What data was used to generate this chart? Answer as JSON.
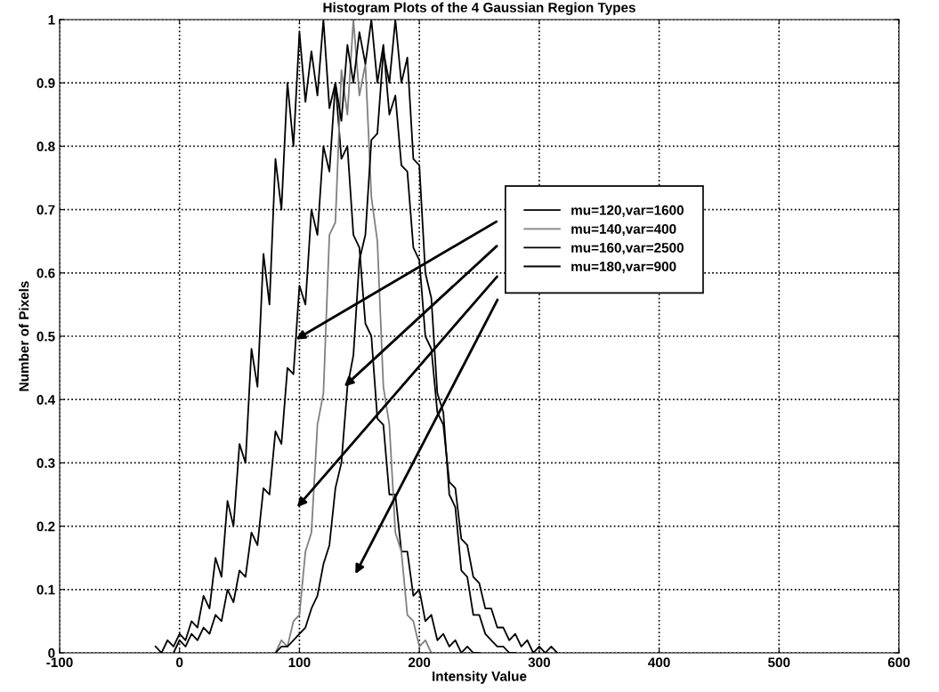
{
  "chart_data": {
    "type": "line",
    "title": "Histogram Plots of the 4 Gaussian Region Types",
    "xlabel": "Intensity Value",
    "ylabel": "Number of Pixels",
    "xlim": [
      -100,
      600
    ],
    "xticks": [
      -100,
      0,
      100,
      200,
      300,
      400,
      500,
      600
    ],
    "ylim": [
      0,
      1
    ],
    "yticks": [
      0,
      0.1,
      0.2,
      0.3,
      0.4,
      0.5,
      0.6,
      0.7,
      0.8,
      0.9,
      1
    ],
    "grid": true,
    "legend": "right",
    "line_style": "solid",
    "marker": "none",
    "series": [
      {
        "name": "mu=120,var=1600",
        "color": "#000000",
        "x": [
          -20,
          -15,
          -10,
          -5,
          0,
          5,
          10,
          15,
          20,
          25,
          30,
          35,
          40,
          45,
          50,
          55,
          60,
          65,
          70,
          75,
          80,
          85,
          90,
          95,
          100,
          105,
          110,
          115,
          120,
          125,
          130,
          135,
          140,
          145,
          150,
          155,
          160,
          165,
          170,
          175,
          180,
          185,
          190,
          195,
          200,
          205,
          210,
          215,
          220,
          225,
          230,
          235,
          240,
          245,
          250
        ],
        "values": [
          0.01,
          0.0,
          0.02,
          0.01,
          0.03,
          0.02,
          0.05,
          0.04,
          0.09,
          0.07,
          0.15,
          0.12,
          0.24,
          0.2,
          0.33,
          0.3,
          0.48,
          0.42,
          0.63,
          0.55,
          0.78,
          0.7,
          0.9,
          0.8,
          0.98,
          0.87,
          0.95,
          0.88,
          1.0,
          0.86,
          0.9,
          0.78,
          0.8,
          0.66,
          0.64,
          0.52,
          0.5,
          0.37,
          0.36,
          0.25,
          0.25,
          0.16,
          0.16,
          0.09,
          0.1,
          0.05,
          0.06,
          0.02,
          0.03,
          0.01,
          0.02,
          0.0,
          0.01,
          0.0,
          0.0
        ]
      },
      {
        "name": "mu=140,var=400",
        "color": "#808080",
        "x": [
          80,
          85,
          90,
          95,
          100,
          105,
          110,
          115,
          120,
          125,
          130,
          135,
          140,
          145,
          150,
          155,
          160,
          165,
          170,
          175,
          180,
          185,
          190,
          195,
          200,
          205,
          210
        ],
        "values": [
          0.0,
          0.02,
          0.01,
          0.05,
          0.06,
          0.16,
          0.19,
          0.36,
          0.41,
          0.66,
          0.68,
          0.92,
          0.85,
          1.0,
          0.88,
          0.93,
          0.72,
          0.65,
          0.42,
          0.36,
          0.19,
          0.16,
          0.06,
          0.05,
          0.01,
          0.02,
          0.0
        ]
      },
      {
        "name": "mu=160,var=2500",
        "color": "#000000",
        "x": [
          -5,
          0,
          5,
          10,
          15,
          20,
          25,
          30,
          35,
          40,
          45,
          50,
          55,
          60,
          65,
          70,
          75,
          80,
          85,
          90,
          95,
          100,
          105,
          110,
          115,
          120,
          125,
          130,
          135,
          140,
          145,
          150,
          155,
          160,
          165,
          170,
          175,
          180,
          185,
          190,
          195,
          200,
          205,
          210,
          215,
          220,
          225,
          230,
          235,
          240,
          245,
          250,
          255,
          260,
          265,
          270,
          275,
          280,
          285,
          290,
          295,
          300,
          305,
          310,
          315
        ],
        "values": [
          0.0,
          0.02,
          0.01,
          0.03,
          0.02,
          0.04,
          0.03,
          0.06,
          0.05,
          0.1,
          0.08,
          0.13,
          0.12,
          0.19,
          0.17,
          0.26,
          0.25,
          0.35,
          0.33,
          0.45,
          0.44,
          0.58,
          0.55,
          0.7,
          0.66,
          0.8,
          0.76,
          0.9,
          0.84,
          0.96,
          0.9,
          0.98,
          0.93,
          1.0,
          0.9,
          0.96,
          0.85,
          0.88,
          0.77,
          0.76,
          0.64,
          0.62,
          0.5,
          0.48,
          0.38,
          0.36,
          0.27,
          0.26,
          0.18,
          0.17,
          0.12,
          0.11,
          0.07,
          0.07,
          0.04,
          0.04,
          0.02,
          0.03,
          0.01,
          0.02,
          0.0,
          0.01,
          0.0,
          0.01,
          0.0
        ]
      },
      {
        "name": "mu=180,var=900",
        "color": "#000000",
        "x": [
          80,
          85,
          90,
          95,
          100,
          105,
          110,
          115,
          120,
          125,
          130,
          135,
          140,
          145,
          150,
          155,
          160,
          165,
          170,
          175,
          180,
          185,
          190,
          195,
          200,
          205,
          210,
          215,
          220,
          225,
          230,
          235,
          240,
          245,
          250,
          255,
          260,
          265,
          270,
          275,
          280
        ],
        "values": [
          0.0,
          0.01,
          0.01,
          0.02,
          0.03,
          0.04,
          0.07,
          0.09,
          0.14,
          0.17,
          0.26,
          0.3,
          0.42,
          0.47,
          0.62,
          0.66,
          0.81,
          0.82,
          0.95,
          0.9,
          1.0,
          0.9,
          0.94,
          0.78,
          0.77,
          0.6,
          0.56,
          0.41,
          0.38,
          0.25,
          0.23,
          0.13,
          0.12,
          0.06,
          0.06,
          0.03,
          0.02,
          0.01,
          0.01,
          0.0,
          0.0
        ]
      }
    ]
  }
}
